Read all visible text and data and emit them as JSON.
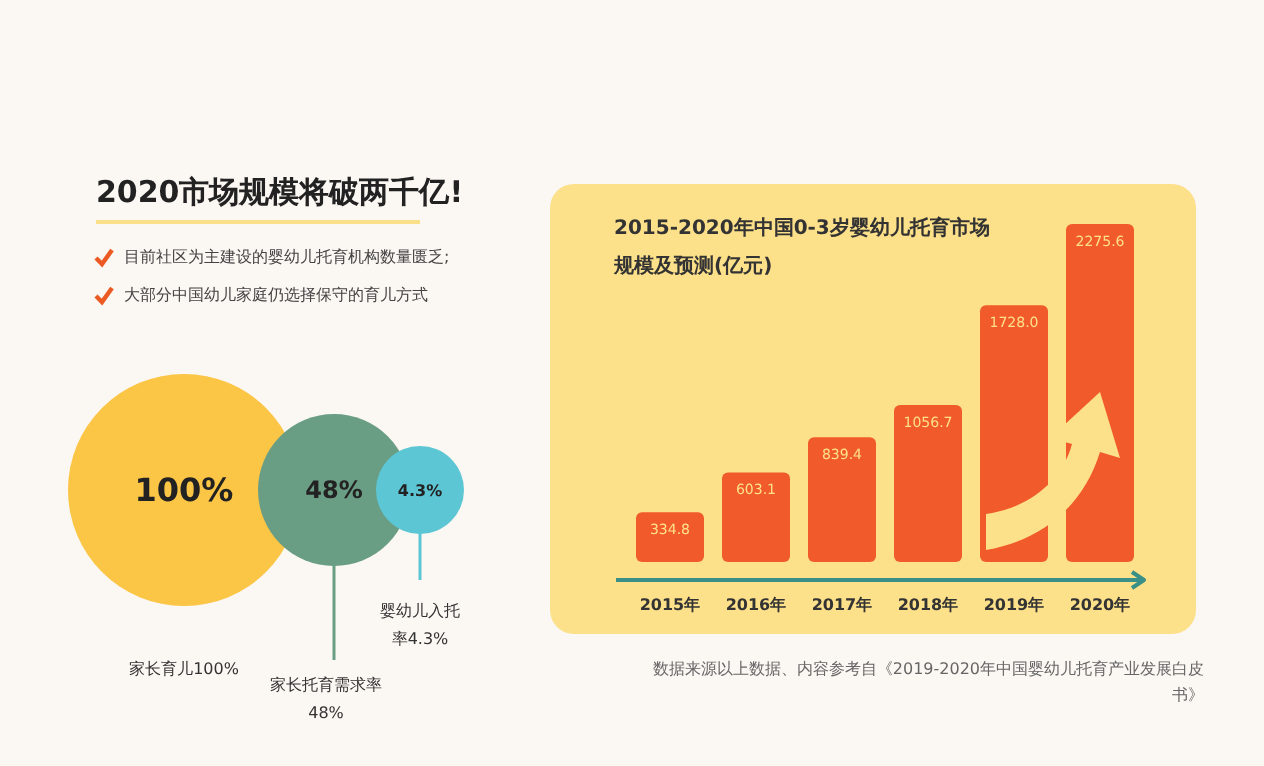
{
  "chart_data": [
    {
      "type": "other",
      "title": "2020市场规模将破两千亿!",
      "annotations": [
        "目前社区为主建设的婴幼儿托育机构数量匮乏;",
        "大部分中国幼儿家庭仍选择保守的育儿方式"
      ],
      "categories": [
        "家长育儿100%",
        "家长托育需求率48%",
        "婴幼儿入托率4.3%"
      ],
      "values": [
        100,
        48,
        4.3
      ],
      "value_labels": [
        "100%",
        "48%",
        "4.3%"
      ],
      "colors": [
        "#fbc546",
        "#6a9e84",
        "#5cc6d4"
      ]
    },
    {
      "type": "bar",
      "title": "2015-2020年中国0-3岁婴幼儿托育市场规模及预测(亿元)",
      "categories": [
        "2015年",
        "2016年",
        "2017年",
        "2018年",
        "2019年",
        "2020年"
      ],
      "values": [
        334.8,
        603.1,
        839.4,
        1056.7,
        1728.0,
        2275.6
      ],
      "value_labels": [
        "334.8",
        "603.1",
        "839.4",
        "1056.7",
        "1728.0",
        "2275.6"
      ],
      "color": "#f15a2b",
      "annotations": [
        "数据来源以上数据、内容参考自《2019-2020年中国婴幼儿托育产业发展白皮书》"
      ]
    }
  ]
}
